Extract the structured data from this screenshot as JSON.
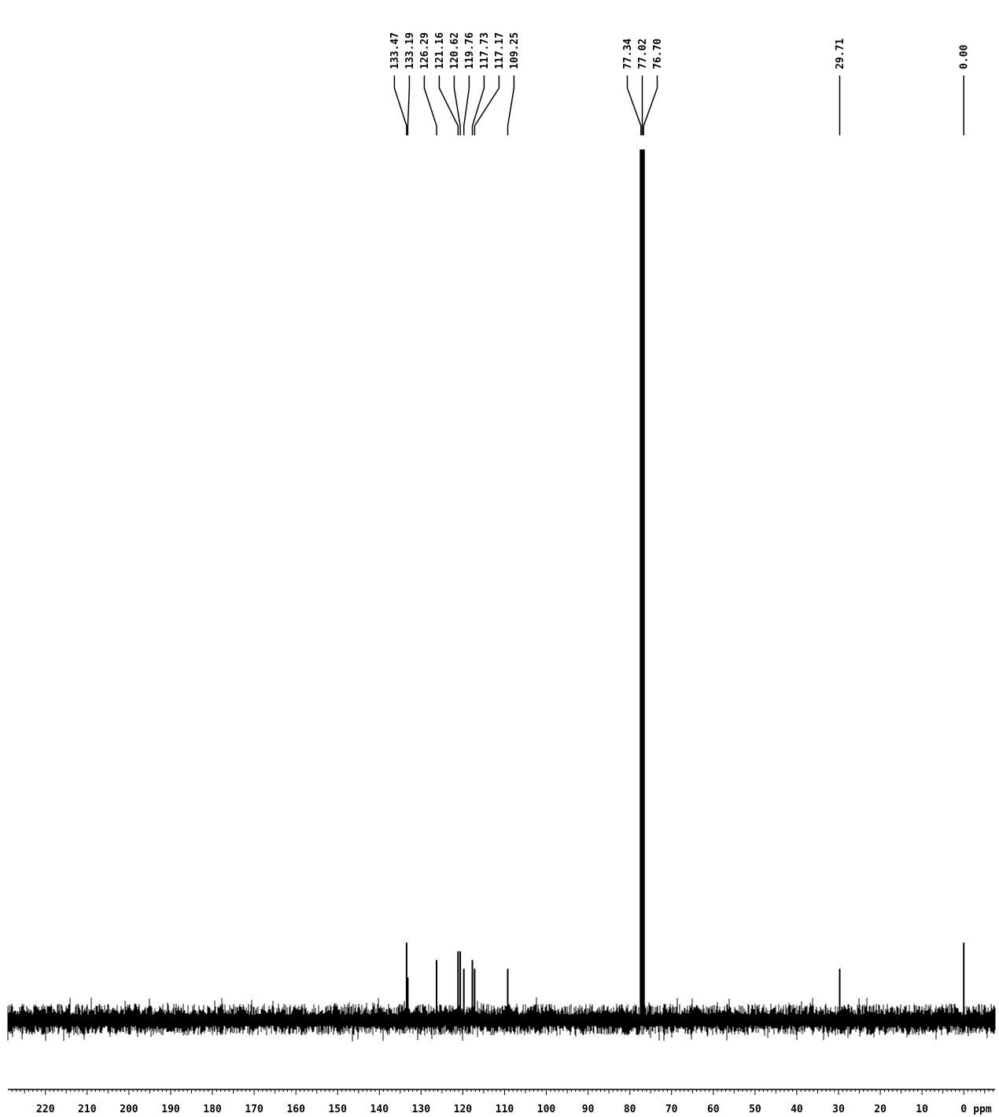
{
  "chart_data": {
    "type": "line",
    "title": "",
    "xlabel": "ppm",
    "ylabel": "",
    "x_reversed": true,
    "xlim": [
      229,
      -7.5
    ],
    "grid": false,
    "colors": {
      "trace": "#000000",
      "background": "#ffffff"
    },
    "tick_labels": [
      "220",
      "210",
      "200",
      "190",
      "180",
      "170",
      "160",
      "150",
      "140",
      "130",
      "120",
      "110",
      "100",
      "90",
      "80",
      "70",
      "60",
      "50",
      "40",
      "30",
      "20",
      "10",
      "0"
    ],
    "unit_label": "ppm",
    "peak_labels": [
      "133.47",
      "133.19",
      "126.29",
      "121.16",
      "120.62",
      "119.76",
      "117.73",
      "117.17",
      "109.25",
      "77.34",
      "77.02",
      "76.70",
      "29.71",
      "0.00"
    ],
    "peaks": [
      {
        "ppm": 133.47,
        "relative_height": 0.09
      },
      {
        "ppm": 133.19,
        "relative_height": 0.05
      },
      {
        "ppm": 126.29,
        "relative_height": 0.07
      },
      {
        "ppm": 121.16,
        "relative_height": 0.08
      },
      {
        "ppm": 120.62,
        "relative_height": 0.08
      },
      {
        "ppm": 119.76,
        "relative_height": 0.06
      },
      {
        "ppm": 117.73,
        "relative_height": 0.07
      },
      {
        "ppm": 117.17,
        "relative_height": 0.06
      },
      {
        "ppm": 109.25,
        "relative_height": 0.06
      },
      {
        "ppm": 77.34,
        "relative_height": 1.0
      },
      {
        "ppm": 77.02,
        "relative_height": 1.0
      },
      {
        "ppm": 76.7,
        "relative_height": 1.0
      },
      {
        "ppm": 29.71,
        "relative_height": 0.06
      },
      {
        "ppm": 0.0,
        "relative_height": 0.09
      }
    ]
  }
}
